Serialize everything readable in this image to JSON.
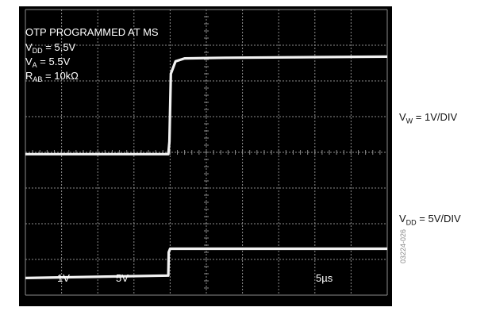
{
  "chart_data": {
    "type": "line",
    "title": "OTP PROGRAMMED AT MS",
    "conditions": [
      {
        "symbol": "V",
        "sub": "DD",
        "value": " = 5.5V"
      },
      {
        "symbol": "V",
        "sub": "A",
        "value": " = 5.5V"
      },
      {
        "symbol": "R",
        "sub": "AB",
        "value": " = 10kΩ"
      }
    ],
    "grid": {
      "h_divisions": 10,
      "v_divisions": 8,
      "minor_ticks_per_division": 5
    },
    "channel_scales": [
      "1V",
      "5V"
    ],
    "time_scale": "5µs",
    "channels": [
      {
        "name": "V",
        "sub": "W",
        "scale_text": " = 1V/DIV",
        "points": [
          [
            0,
            3.95
          ],
          [
            3.95,
            3.95
          ],
          [
            3.98,
            4.3
          ],
          [
            4.02,
            6.2
          ],
          [
            4.15,
            6.55
          ],
          [
            4.4,
            6.63
          ],
          [
            5.5,
            6.65
          ],
          [
            10,
            6.68
          ]
        ]
      },
      {
        "name": "V",
        "sub": "DD",
        "scale_text": " = 5V/DIV",
        "points": [
          [
            0,
            0.48
          ],
          [
            3.95,
            0.55
          ],
          [
            3.96,
            1.2
          ],
          [
            4.0,
            1.3
          ],
          [
            10,
            1.3
          ]
        ]
      }
    ],
    "colors": {
      "screen": "#000000",
      "grid": "#8c8c8c",
      "trace": "#f2f2f2",
      "text": "#ffffff"
    }
  },
  "figure_id": "03224-026"
}
